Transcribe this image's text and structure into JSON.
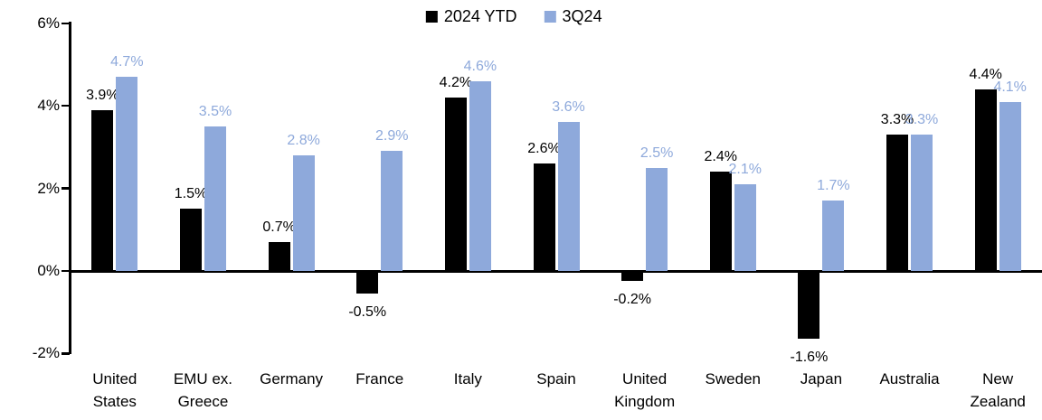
{
  "chart_data": {
    "type": "bar",
    "title": "",
    "xlabel": "",
    "ylabel": "",
    "grid": false,
    "legend_position": "top-center",
    "ylim": [
      -2,
      6
    ],
    "y_ticks": [
      {
        "label": "6%",
        "value": 6
      },
      {
        "label": "4%",
        "value": 4
      },
      {
        "label": "2%",
        "value": 2
      },
      {
        "label": "0%",
        "value": 0
      },
      {
        "label": "-2%",
        "value": -2
      }
    ],
    "categories": [
      "United\nStates",
      "EMU ex.\nGreece",
      "Germany",
      "France",
      "Italy",
      "Spain",
      "United\nKingdom",
      "Sweden",
      "Japan",
      "Australia",
      "New\nZealand"
    ],
    "series": [
      {
        "name": "2024 YTD",
        "color": "#000000",
        "values": [
          3.9,
          1.5,
          0.7,
          -0.5,
          4.2,
          2.6,
          -0.2,
          2.4,
          -1.6,
          3.3,
          4.4
        ],
        "labels": [
          "3.9%",
          "1.5%",
          "0.7%",
          "-0.5%",
          "4.2%",
          "2.6%",
          "-0.2%",
          "2.4%",
          "-1.6%",
          "3.3%",
          "4.4%"
        ]
      },
      {
        "name": "3Q24",
        "color": "#8EA9DB",
        "values": [
          4.7,
          3.5,
          2.8,
          2.9,
          4.6,
          3.6,
          2.5,
          2.1,
          1.7,
          3.3,
          4.1
        ],
        "labels": [
          "4.7%",
          "3.5%",
          "2.8%",
          "2.9%",
          "4.6%",
          "3.6%",
          "2.5%",
          "2.1%",
          "1.7%",
          "3.3%",
          "4.1%"
        ]
      }
    ]
  }
}
